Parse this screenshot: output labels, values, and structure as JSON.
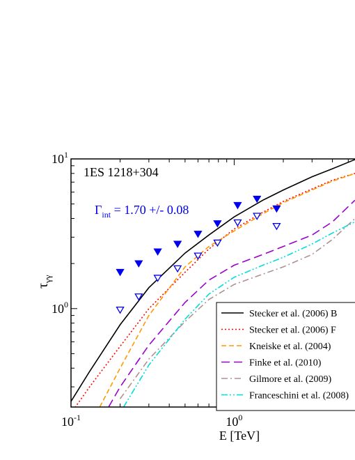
{
  "chart_data": {
    "type": "line",
    "title": "1ES 1218+304",
    "annotation": {
      "symbol": "Γ",
      "subscript": "int",
      "text": " = 1.70 +/- 0.08",
      "color": "#0000ee"
    },
    "xlabel": "E [TeV]",
    "ylabel": {
      "symbol": "τ",
      "subscript": "γγ"
    },
    "x_scale": "log",
    "y_scale": "log",
    "xlim": [
      0.1,
      5.5
    ],
    "ylim": [
      0.22,
      10
    ],
    "x_ticks": [
      {
        "value": 0.1,
        "base": "10",
        "exp": "-1"
      },
      {
        "value": 1,
        "base": "10",
        "exp": "0"
      }
    ],
    "y_ticks": [
      {
        "value": 1,
        "base": "10",
        "exp": "0"
      },
      {
        "value": 10,
        "base": "10",
        "exp": "1"
      }
    ],
    "series": [
      {
        "name": "Stecker et al. (2006) B",
        "color": "#000000",
        "dash": "solid",
        "x": [
          0.1,
          0.13,
          0.2,
          0.3,
          0.5,
          0.7,
          1.0,
          1.5,
          2.0,
          3.0,
          4.0,
          5.5
        ],
        "y": [
          0.24,
          0.38,
          0.78,
          1.38,
          2.35,
          3.1,
          4.1,
          5.3,
          6.2,
          7.6,
          8.6,
          9.9
        ]
      },
      {
        "name": "Stecker et al. (2006) F",
        "color": "#ff0000",
        "dash": "dotted",
        "x": [
          0.1,
          0.13,
          0.2,
          0.3,
          0.5,
          0.7,
          1.0,
          1.5,
          2.0,
          3.0,
          4.0,
          5.5
        ],
        "y": [
          0.2,
          0.3,
          0.56,
          1.0,
          1.75,
          2.5,
          3.4,
          4.4,
          5.2,
          6.3,
          7.2,
          8.0
        ]
      },
      {
        "name": "Kneiske et al. (2004)",
        "color": "#ff9900",
        "dash": "dashed",
        "x": [
          0.15,
          0.2,
          0.3,
          0.5,
          0.7,
          1.0,
          1.5,
          2.0,
          3.0,
          4.0,
          5.5
        ],
        "y": [
          0.22,
          0.4,
          0.9,
          1.9,
          2.6,
          3.3,
          4.3,
          5.1,
          6.2,
          7.1,
          8.0
        ]
      },
      {
        "name": "Finke et al. (2010)",
        "color": "#9900cc",
        "dash": "longdash",
        "x": [
          0.17,
          0.2,
          0.3,
          0.5,
          0.7,
          1.0,
          1.5,
          2.0,
          3.0,
          4.0,
          5.5
        ],
        "y": [
          0.22,
          0.3,
          0.57,
          1.1,
          1.55,
          1.95,
          2.3,
          2.6,
          3.1,
          3.8,
          5.3
        ]
      },
      {
        "name": "Gilmore et al. (2009)",
        "color": "#b09090",
        "dash": "dashdot",
        "x": [
          0.2,
          0.3,
          0.5,
          0.7,
          1.0,
          1.5,
          2.0,
          3.0,
          4.0,
          5.5
        ],
        "y": [
          0.25,
          0.46,
          0.82,
          1.15,
          1.45,
          1.7,
          1.9,
          2.3,
          2.9,
          4.0
        ]
      },
      {
        "name": "Franceschini et al. (2008)",
        "color": "#00dddd",
        "dash": "dashdotdot",
        "x": [
          0.21,
          0.3,
          0.5,
          0.7,
          1.0,
          1.5,
          2.0,
          3.0,
          4.0,
          5.5
        ],
        "y": [
          0.22,
          0.42,
          0.85,
          1.25,
          1.62,
          1.95,
          2.2,
          2.7,
          3.2,
          3.8
        ]
      }
    ],
    "markers": [
      {
        "name": "filled",
        "color": "#0000ee",
        "fill": true,
        "x": [
          0.2,
          0.26,
          0.34,
          0.45,
          0.6,
          0.79,
          1.05,
          1.38,
          1.82
        ],
        "y": [
          1.75,
          2.0,
          2.4,
          2.7,
          3.15,
          3.7,
          4.9,
          5.4,
          4.65
        ]
      },
      {
        "name": "open",
        "color": "#0000ee",
        "fill": false,
        "x": [
          0.2,
          0.26,
          0.34,
          0.45,
          0.6,
          0.79,
          1.05,
          1.38,
          1.82
        ],
        "y": [
          0.98,
          1.2,
          1.6,
          1.85,
          2.25,
          2.75,
          3.75,
          4.15,
          3.55
        ]
      }
    ],
    "legend": {
      "position": "bottom-right"
    }
  }
}
